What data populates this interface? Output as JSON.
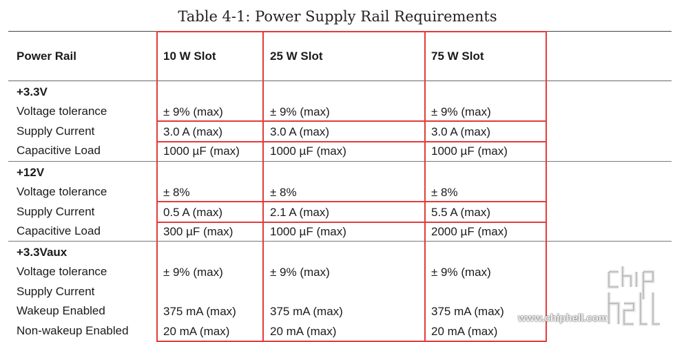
{
  "title": "Table 4-1:  Power Supply Rail Requirements",
  "columns": [
    "Power Rail",
    "10 W Slot",
    "25 W Slot",
    "75 W Slot"
  ],
  "groups": [
    {
      "name": "+3.3V",
      "rows": [
        {
          "label": "Voltage tolerance",
          "values": [
            "± 9% (max)",
            "± 9% (max)",
            "± 9% (max)"
          ]
        },
        {
          "label": "Supply Current",
          "values": [
            "3.0 A (max)",
            "3.0 A (max)",
            "3.0 A (max)"
          ]
        },
        {
          "label": "Capacitive Load",
          "values": [
            "1000 µF (max)",
            "1000 µF (max)",
            "1000 µF (max)"
          ]
        }
      ]
    },
    {
      "name": "+12V",
      "rows": [
        {
          "label": "Voltage tolerance",
          "values": [
            "± 8%",
            "± 8%",
            "± 8%"
          ]
        },
        {
          "label": "Supply Current",
          "values": [
            "0.5 A (max)",
            "2.1 A (max)",
            "5.5 A (max)"
          ]
        },
        {
          "label": "Capacitive Load",
          "values": [
            "300 µF (max)",
            "1000 µF (max)",
            "2000 µF (max)"
          ]
        }
      ]
    },
    {
      "name": "+3.3Vaux",
      "rows": [
        {
          "label": "Voltage tolerance",
          "values": [
            "± 9% (max)",
            "± 9% (max)",
            "± 9% (max)"
          ]
        },
        {
          "label": "Supply Current",
          "values": [
            "",
            "",
            ""
          ]
        },
        {
          "label": "Wakeup Enabled",
          "values": [
            "375 mA (max)",
            "375 mA (max)",
            "375 mA (max)"
          ]
        },
        {
          "label": "Non-wakeup Enabled",
          "values": [
            "20 mA (max)",
            "20 mA (max)",
            "20 mA (max)"
          ]
        }
      ]
    }
  ],
  "watermark": {
    "text": "www.chiphell.com",
    "logo": "chip hell"
  },
  "highlight_color": "#e23a3a"
}
